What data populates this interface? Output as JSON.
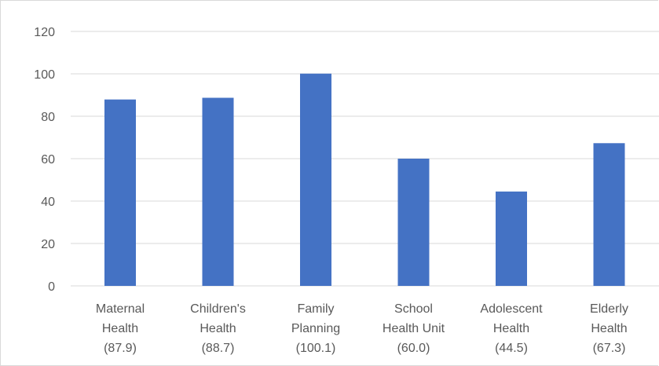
{
  "chart_data": {
    "type": "bar",
    "categories": [
      [
        "Maternal",
        "Health",
        "(87.9)"
      ],
      [
        "Children's",
        "Health",
        "(88.7)"
      ],
      [
        "Family",
        "Planning",
        "(100.1)"
      ],
      [
        "School",
        "Health Unit",
        "(60.0)"
      ],
      [
        "Adolescent",
        "Health",
        "(44.5)"
      ],
      [
        "Elderly",
        "Health",
        "(67.3)"
      ]
    ],
    "values": [
      87.9,
      88.7,
      100.1,
      60.0,
      44.5,
      67.3
    ],
    "ylim": [
      0,
      120
    ],
    "yticks": [
      0,
      20,
      40,
      60,
      80,
      100,
      120
    ],
    "grid": true,
    "bar_color": "#4472c4",
    "grid_color": "#d9d9d9"
  }
}
